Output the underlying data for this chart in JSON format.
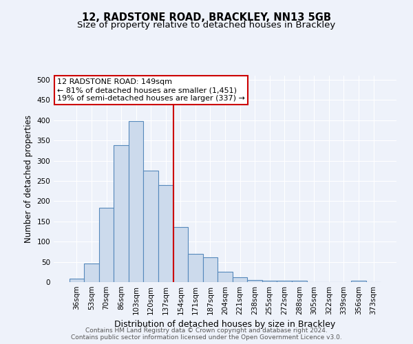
{
  "title": "12, RADSTONE ROAD, BRACKLEY, NN13 5GB",
  "subtitle": "Size of property relative to detached houses in Brackley",
  "xlabel": "Distribution of detached houses by size in Brackley",
  "ylabel": "Number of detached properties",
  "bin_labels": [
    "36sqm",
    "53sqm",
    "70sqm",
    "86sqm",
    "103sqm",
    "120sqm",
    "137sqm",
    "154sqm",
    "171sqm",
    "187sqm",
    "204sqm",
    "221sqm",
    "238sqm",
    "255sqm",
    "272sqm",
    "288sqm",
    "305sqm",
    "322sqm",
    "339sqm",
    "356sqm",
    "373sqm"
  ],
  "bar_heights": [
    8,
    46,
    184,
    338,
    398,
    276,
    240,
    136,
    70,
    62,
    25,
    12,
    5,
    4,
    4,
    4,
    0,
    0,
    0,
    4,
    0
  ],
  "bar_color": "#ccdaec",
  "bar_edgecolor": "#5588bb",
  "bar_linewidth": 0.8,
  "vline_index": 7,
  "vline_color": "#cc0000",
  "annotation_text": "12 RADSTONE ROAD: 149sqm\n← 81% of detached houses are smaller (1,451)\n19% of semi-detached houses are larger (337) →",
  "annotation_box_edgecolor": "#cc0000",
  "annotation_box_facecolor": "#ffffff",
  "ylim": [
    0,
    510
  ],
  "yticks": [
    0,
    50,
    100,
    150,
    200,
    250,
    300,
    350,
    400,
    450,
    500
  ],
  "background_color": "#eef2fa",
  "grid_color": "#ffffff",
  "footer_line1": "Contains HM Land Registry data © Crown copyright and database right 2024.",
  "footer_line2": "Contains public sector information licensed under the Open Government Licence v3.0.",
  "title_fontsize": 10.5,
  "subtitle_fontsize": 9.5,
  "xlabel_fontsize": 9,
  "ylabel_fontsize": 8.5,
  "tick_fontsize": 7.5,
  "annotation_fontsize": 8,
  "footer_fontsize": 6.5
}
